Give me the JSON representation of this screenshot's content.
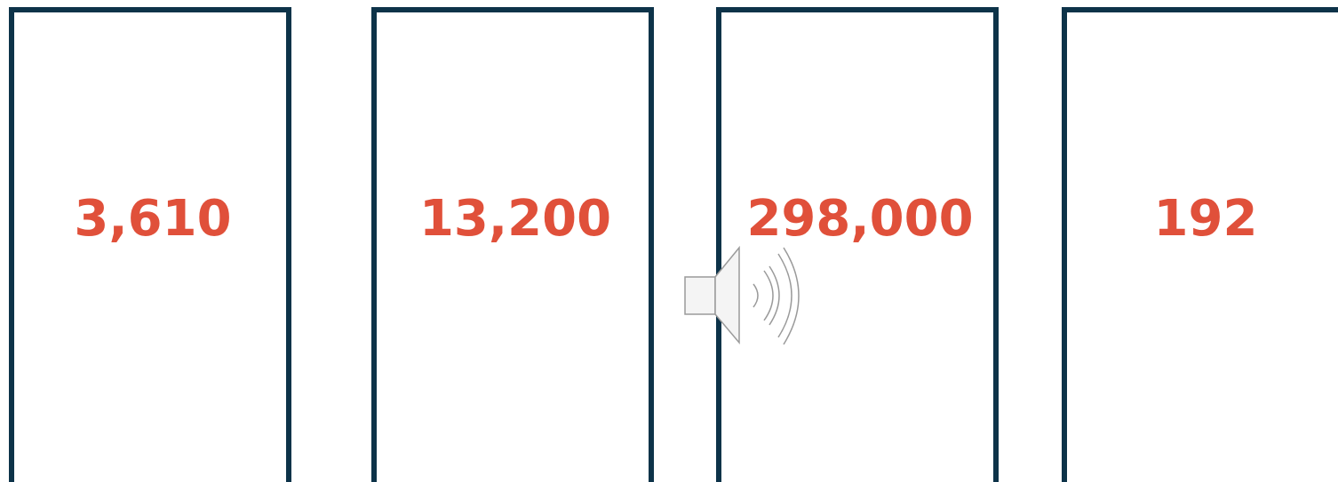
{
  "cards": [
    {
      "value": "3,610"
    },
    {
      "value": "13,200"
    },
    {
      "value": "298,000"
    },
    {
      "value": "192"
    }
  ]
}
